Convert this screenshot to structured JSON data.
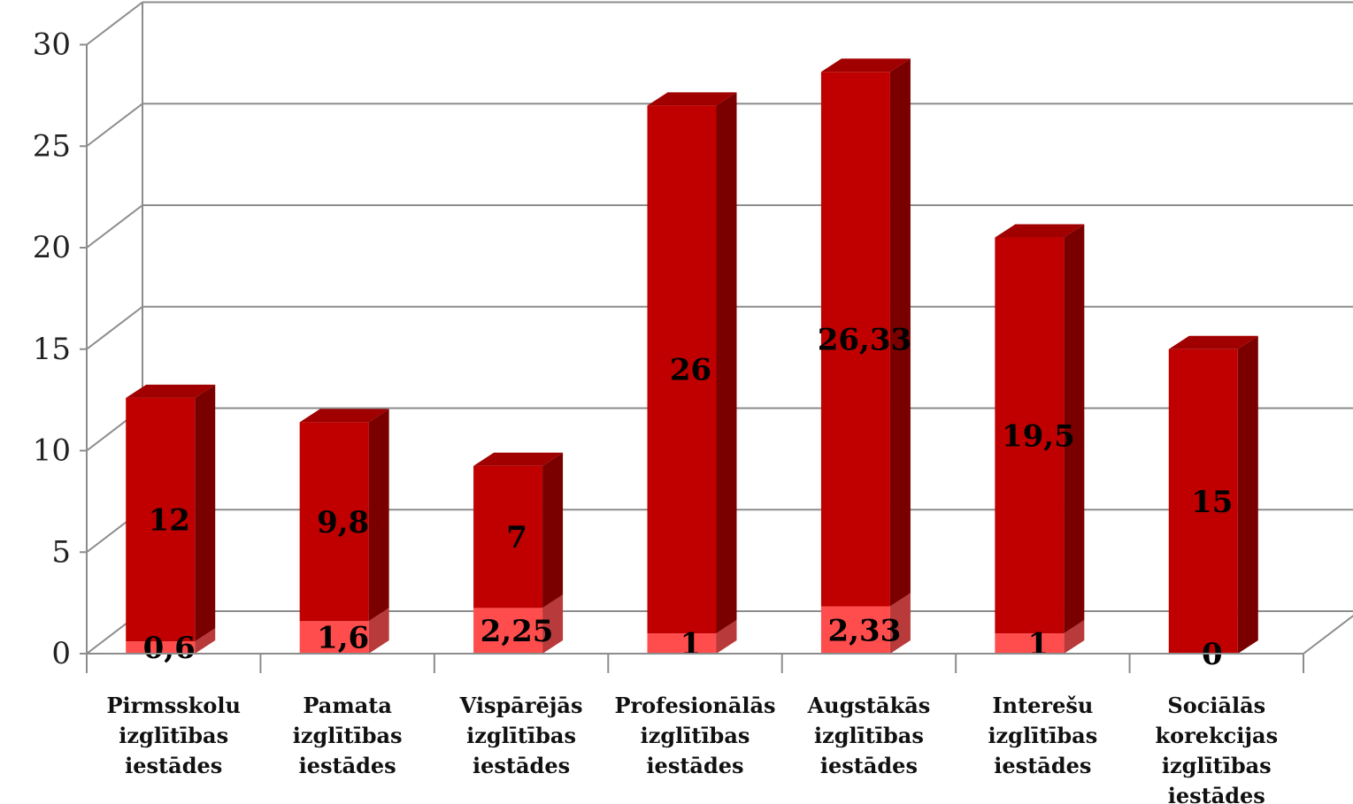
{
  "chart_data": {
    "type": "bar",
    "stacked": true,
    "three_d": true,
    "categories": [
      [
        "Pirmsskolu",
        "izglītības",
        "iestādes"
      ],
      [
        "Pamata",
        "izglītības",
        "iestādes"
      ],
      [
        "Vispārējās",
        "izglītības",
        "iestādes"
      ],
      [
        "Profesionālās",
        "izglītības",
        "iestādes"
      ],
      [
        "Augstākās",
        "izglītības",
        "iestādes"
      ],
      [
        "Interešu",
        "izglītības",
        "iestādes"
      ],
      [
        "Sociālās",
        "korekcijas",
        "izglītības",
        "iestādes"
      ]
    ],
    "series": [
      {
        "color": "#ff4d4d",
        "values": [
          0.6,
          1.6,
          2.25,
          1,
          2.33,
          1,
          0
        ],
        "labels": [
          "0,6",
          "1,6",
          "2,25",
          "1",
          "2,33",
          "1",
          "0"
        ]
      },
      {
        "color": "#c00000",
        "values": [
          12,
          9.8,
          7,
          26,
          26.33,
          19.5,
          15
        ],
        "labels": [
          "12",
          "9,8",
          "7",
          "26",
          "26,33",
          "19,5",
          "15"
        ]
      }
    ],
    "y_ticks": [
      "0",
      "5",
      "10",
      "15",
      "20",
      "25",
      "30"
    ],
    "ylim": [
      0,
      30
    ],
    "grid": true,
    "legend": "none",
    "colors": {
      "gridline": "#8c8c8c",
      "bottom_front": "#ff4d4d",
      "bottom_side": "#b83a3a",
      "top_front": "#c00000",
      "top_side": "#7a0000",
      "top_cap": "#a00000"
    }
  }
}
